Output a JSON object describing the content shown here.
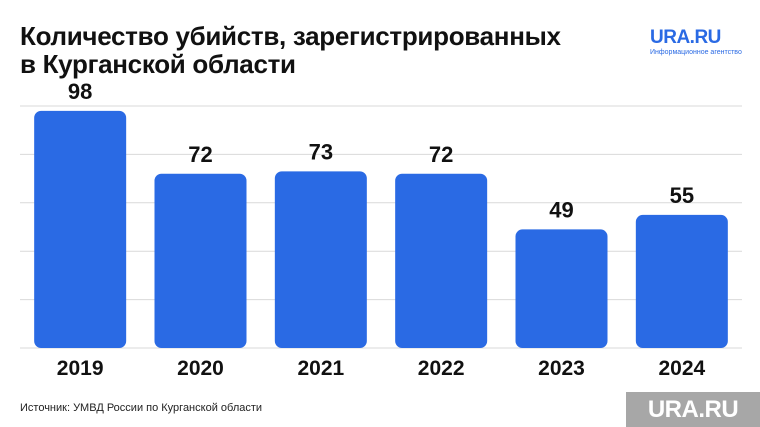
{
  "header": {
    "title_line1": "Количество убийств, зарегистрированных",
    "title_line2": "в Курганской области"
  },
  "brand": {
    "name": "URA.RU",
    "tagline": "Информационное агентство",
    "color": "#2a6ae4"
  },
  "chart_data": {
    "type": "bar",
    "title": "Количество убийств, зарегистрированных в Курганской области",
    "categories": [
      "2019",
      "2020",
      "2021",
      "2022",
      "2023",
      "2024"
    ],
    "values": [
      98,
      72,
      73,
      72,
      49,
      55
    ],
    "ylim": [
      0,
      100
    ],
    "grid": true,
    "legend": "none",
    "bar_color": "#2a6ae4"
  },
  "footer": {
    "source": "Источник: УМВД России по Курганской области",
    "watermark": "URA.RU"
  }
}
